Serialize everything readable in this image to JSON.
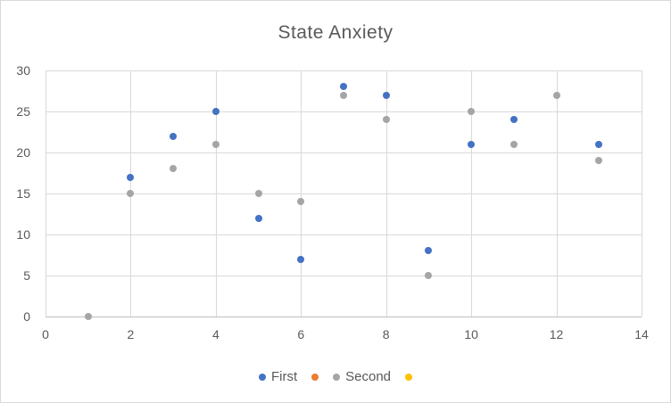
{
  "chart_data": {
    "type": "scatter",
    "title": "State Anxiety",
    "xlabel": "",
    "ylabel": "",
    "xlim": [
      0,
      14
    ],
    "ylim": [
      0,
      30
    ],
    "xticks": [
      0,
      2,
      4,
      6,
      8,
      10,
      12,
      14
    ],
    "yticks": [
      0,
      5,
      10,
      15,
      20,
      25,
      30
    ],
    "grid": true,
    "legend_position": "bottom",
    "series": [
      {
        "name": "First",
        "color": "#4472C4",
        "points": [
          [
            2,
            17
          ],
          [
            3,
            22
          ],
          [
            4,
            25
          ],
          [
            5,
            12
          ],
          [
            6,
            7
          ],
          [
            7,
            28
          ],
          [
            8,
            27
          ],
          [
            9,
            8
          ],
          [
            10,
            21
          ],
          [
            11,
            24
          ],
          [
            13,
            21
          ]
        ]
      },
      {
        "name": "",
        "color": "#ED7D31",
        "points": []
      },
      {
        "name": "Second",
        "color": "#A5A5A5",
        "points": [
          [
            1,
            0
          ],
          [
            2,
            15
          ],
          [
            3,
            18
          ],
          [
            4,
            21
          ],
          [
            5,
            15
          ],
          [
            6,
            14
          ],
          [
            7,
            27
          ],
          [
            8,
            24
          ],
          [
            9,
            5
          ],
          [
            10,
            25
          ],
          [
            11,
            21
          ],
          [
            12,
            27
          ],
          [
            13,
            19
          ]
        ]
      },
      {
        "name": "",
        "color": "#FFC000",
        "points": []
      }
    ]
  },
  "colors": {
    "background": "#FFFFFF",
    "border": "#D9D9D9",
    "gridline": "#D9D9D9",
    "axis_line": "#BFBFBF",
    "text": "#595959"
  }
}
